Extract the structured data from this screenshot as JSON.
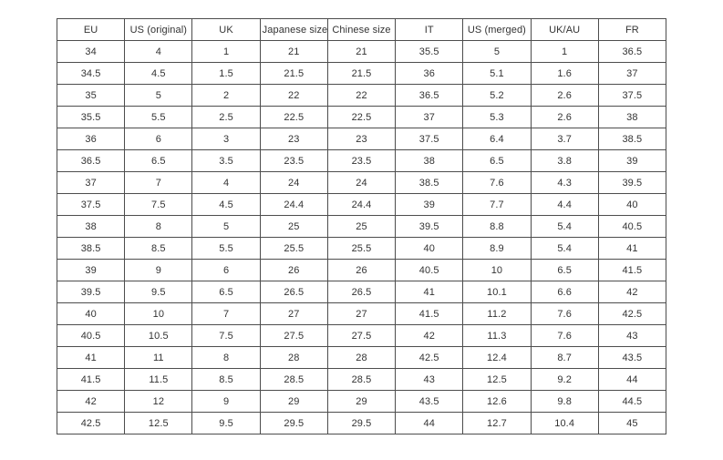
{
  "colors": {
    "background": "#ffffff",
    "border": "#4d4d4d",
    "text": "#333333"
  },
  "table": {
    "name": "shoe-size-conversion-table",
    "headers": [
      "EU",
      "US (original)",
      "UK",
      "Japanese size",
      "Chinese size",
      "IT",
      "US (merged)",
      "UK/AU",
      "FR"
    ],
    "rows": [
      [
        "34",
        "4",
        "1",
        "21",
        "21",
        "35.5",
        "5",
        "1",
        "36.5"
      ],
      [
        "34.5",
        "4.5",
        "1.5",
        "21.5",
        "21.5",
        "36",
        "5.1",
        "1.6",
        "37"
      ],
      [
        "35",
        "5",
        "2",
        "22",
        "22",
        "36.5",
        "5.2",
        "2.6",
        "37.5"
      ],
      [
        "35.5",
        "5.5",
        "2.5",
        "22.5",
        "22.5",
        "37",
        "5.3",
        "2.6",
        "38"
      ],
      [
        "36",
        "6",
        "3",
        "23",
        "23",
        "37.5",
        "6.4",
        "3.7",
        "38.5"
      ],
      [
        "36.5",
        "6.5",
        "3.5",
        "23.5",
        "23.5",
        "38",
        "6.5",
        "3.8",
        "39"
      ],
      [
        "37",
        "7",
        "4",
        "24",
        "24",
        "38.5",
        "7.6",
        "4.3",
        "39.5"
      ],
      [
        "37.5",
        "7.5",
        "4.5",
        "24.4",
        "24.4",
        "39",
        "7.7",
        "4.4",
        "40"
      ],
      [
        "38",
        "8",
        "5",
        "25",
        "25",
        "39.5",
        "8.8",
        "5.4",
        "40.5"
      ],
      [
        "38.5",
        "8.5",
        "5.5",
        "25.5",
        "25.5",
        "40",
        "8.9",
        "5.4",
        "41"
      ],
      [
        "39",
        "9",
        "6",
        "26",
        "26",
        "40.5",
        "10",
        "6.5",
        "41.5"
      ],
      [
        "39.5",
        "9.5",
        "6.5",
        "26.5",
        "26.5",
        "41",
        "10.1",
        "6.6",
        "42"
      ],
      [
        "40",
        "10",
        "7",
        "27",
        "27",
        "41.5",
        "11.2",
        "7.6",
        "42.5"
      ],
      [
        "40.5",
        "10.5",
        "7.5",
        "27.5",
        "27.5",
        "42",
        "11.3",
        "7.6",
        "43"
      ],
      [
        "41",
        "11",
        "8",
        "28",
        "28",
        "42.5",
        "12.4",
        "8.7",
        "43.5"
      ],
      [
        "41.5",
        "11.5",
        "8.5",
        "28.5",
        "28.5",
        "43",
        "12.5",
        "9.2",
        "44"
      ],
      [
        "42",
        "12",
        "9",
        "29",
        "29",
        "43.5",
        "12.6",
        "9.8",
        "44.5"
      ],
      [
        "42.5",
        "12.5",
        "9.5",
        "29.5",
        "29.5",
        "44",
        "12.7",
        "10.4",
        "45"
      ]
    ]
  }
}
